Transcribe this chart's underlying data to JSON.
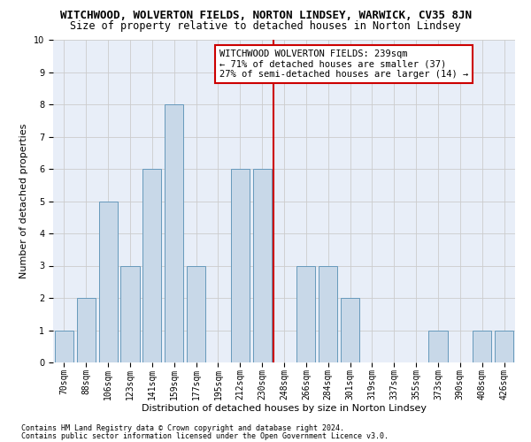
{
  "title": "WITCHWOOD, WOLVERTON FIELDS, NORTON LINDSEY, WARWICK, CV35 8JN",
  "subtitle": "Size of property relative to detached houses in Norton Lindsey",
  "xlabel": "Distribution of detached houses by size in Norton Lindsey",
  "ylabel": "Number of detached properties",
  "categories": [
    "70sqm",
    "88sqm",
    "106sqm",
    "123sqm",
    "141sqm",
    "159sqm",
    "177sqm",
    "195sqm",
    "212sqm",
    "230sqm",
    "248sqm",
    "266sqm",
    "284sqm",
    "301sqm",
    "319sqm",
    "337sqm",
    "355sqm",
    "373sqm",
    "390sqm",
    "408sqm",
    "426sqm"
  ],
  "values": [
    1,
    2,
    5,
    3,
    6,
    8,
    3,
    0,
    6,
    6,
    0,
    3,
    3,
    2,
    0,
    0,
    0,
    1,
    0,
    1,
    1
  ],
  "bar_color": "#c8d8e8",
  "bar_edge_color": "#6699bb",
  "grid_color": "#cccccc",
  "background_color": "#e8eef8",
  "ylim": [
    0,
    10
  ],
  "yticks": [
    0,
    1,
    2,
    3,
    4,
    5,
    6,
    7,
    8,
    9,
    10
  ],
  "vline_x_index": 9.5,
  "vline_color": "#cc0000",
  "annotation_text": "WITCHWOOD WOLVERTON FIELDS: 239sqm\n← 71% of detached houses are smaller (37)\n27% of semi-detached houses are larger (14) →",
  "annotation_box_color": "#ffffff",
  "annotation_box_edge_color": "#cc0000",
  "footer_line1": "Contains HM Land Registry data © Crown copyright and database right 2024.",
  "footer_line2": "Contains public sector information licensed under the Open Government Licence v3.0.",
  "title_fontsize": 9,
  "subtitle_fontsize": 8.5,
  "xlabel_fontsize": 8,
  "ylabel_fontsize": 8,
  "tick_fontsize": 7,
  "annotation_fontsize": 7.5,
  "footer_fontsize": 6
}
